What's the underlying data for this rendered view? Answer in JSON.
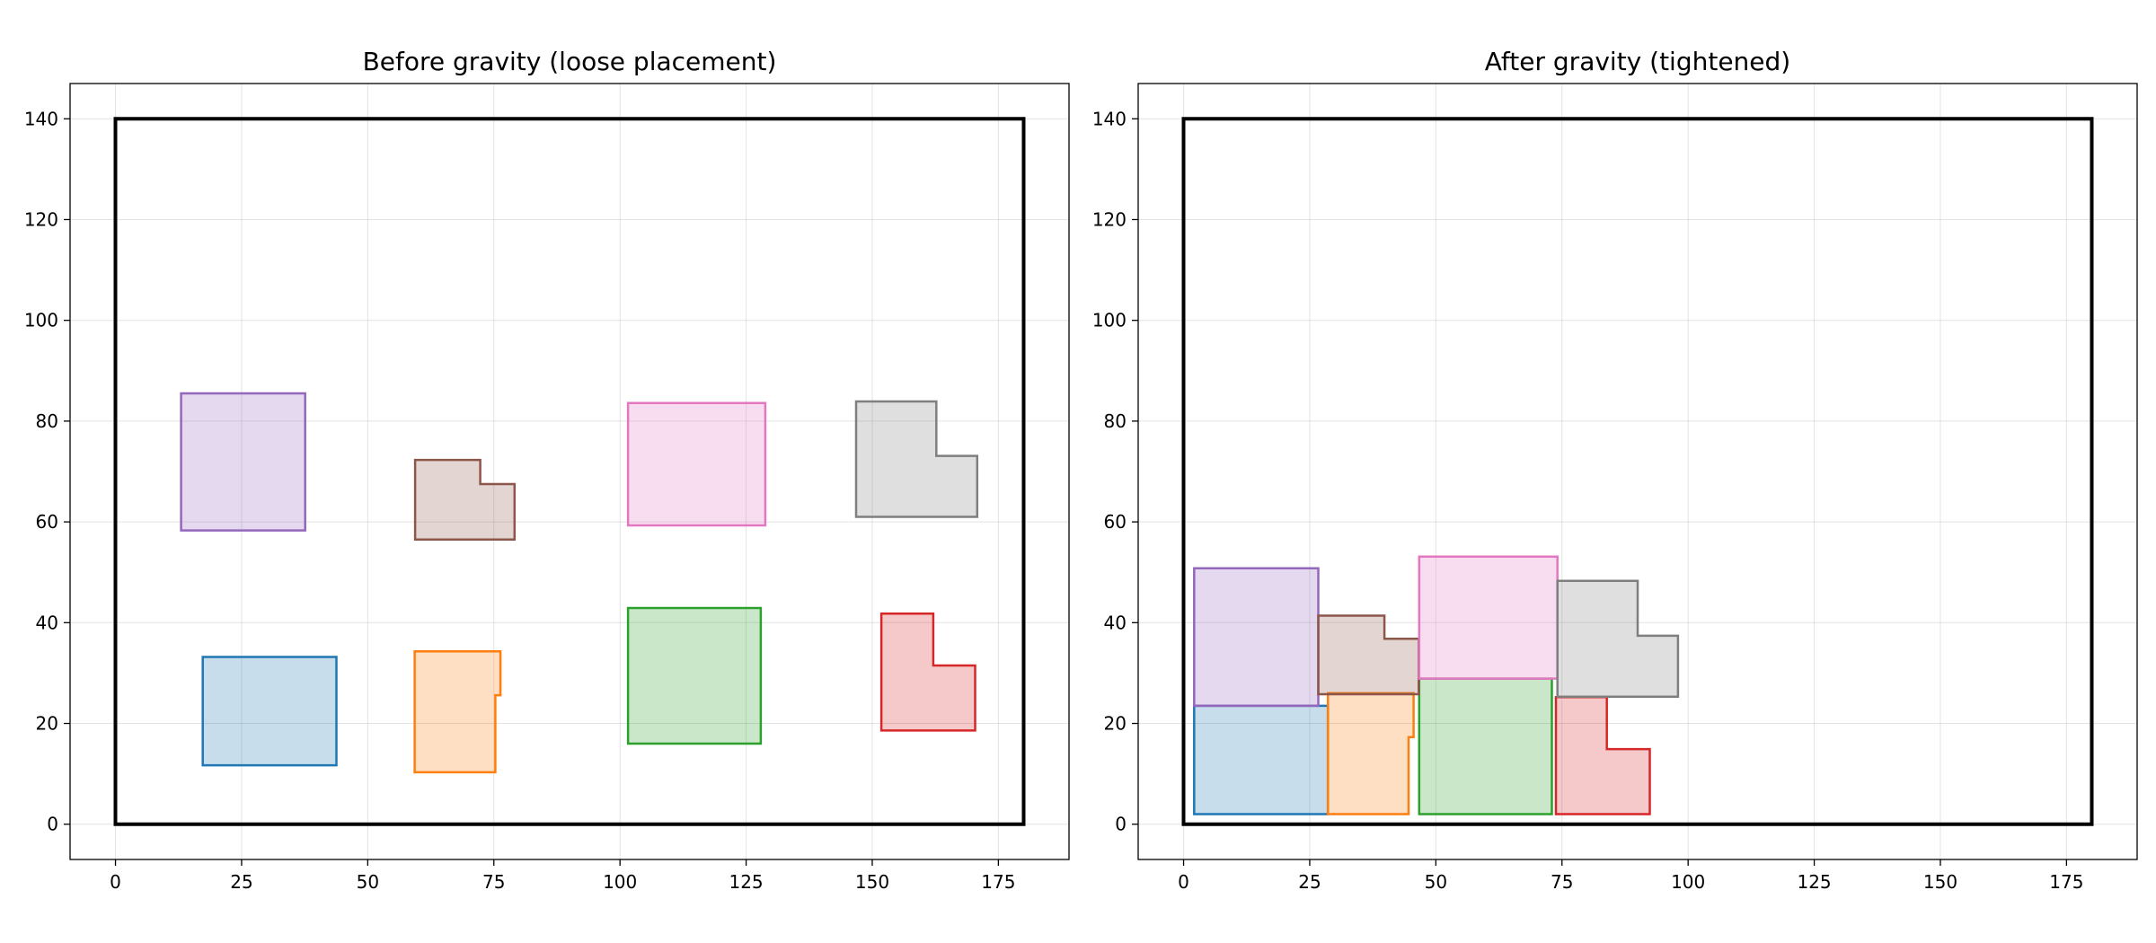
{
  "chart_data": [
    {
      "type": "polygon",
      "title": "Before gravity (loose placement)",
      "xlabel": "",
      "ylabel": "",
      "xlim": [
        -9,
        189
      ],
      "ylim": [
        -7,
        147
      ],
      "xticks": [
        0,
        25,
        50,
        75,
        100,
        125,
        150,
        175
      ],
      "yticks": [
        0,
        20,
        40,
        60,
        80,
        100,
        120,
        140
      ],
      "grid": true,
      "container": [
        [
          0,
          0
        ],
        [
          180,
          0
        ],
        [
          180,
          140
        ],
        [
          0,
          140
        ]
      ],
      "shapes": [
        {
          "color": "#1f77b4",
          "points": [
            [
              17.3,
              11.7
            ],
            [
              43.8,
              11.7
            ],
            [
              43.8,
              33.2
            ],
            [
              17.3,
              33.2
            ]
          ]
        },
        {
          "color": "#ff7f0e",
          "points": [
            [
              59.3,
              10.3
            ],
            [
              75.3,
              10.3
            ],
            [
              75.3,
              25.6
            ],
            [
              76.3,
              25.6
            ],
            [
              76.3,
              34.3
            ],
            [
              59.3,
              34.3
            ]
          ]
        },
        {
          "color": "#2ca02c",
          "points": [
            [
              101.6,
              16.0
            ],
            [
              127.9,
              16.0
            ],
            [
              127.9,
              42.9
            ],
            [
              101.6,
              42.9
            ]
          ]
        },
        {
          "color": "#d62728",
          "points": [
            [
              151.8,
              18.6
            ],
            [
              170.4,
              18.6
            ],
            [
              170.4,
              31.5
            ],
            [
              162.1,
              31.5
            ],
            [
              162.1,
              41.8
            ],
            [
              151.8,
              41.8
            ]
          ]
        },
        {
          "color": "#9467bd",
          "points": [
            [
              13.0,
              58.3
            ],
            [
              37.6,
              58.3
            ],
            [
              37.6,
              85.5
            ],
            [
              13.0,
              85.5
            ]
          ]
        },
        {
          "color": "#8c564b",
          "points": [
            [
              59.4,
              56.5
            ],
            [
              79.1,
              56.5
            ],
            [
              79.1,
              67.5
            ],
            [
              72.3,
              67.5
            ],
            [
              72.3,
              72.3
            ],
            [
              59.4,
              72.3
            ]
          ]
        },
        {
          "color": "#e377c2",
          "points": [
            [
              101.6,
              59.3
            ],
            [
              128.8,
              59.3
            ],
            [
              128.8,
              83.6
            ],
            [
              101.6,
              83.6
            ]
          ]
        },
        {
          "color": "#7f7f7f",
          "points": [
            [
              146.8,
              61.0
            ],
            [
              170.8,
              61.0
            ],
            [
              170.8,
              73.1
            ],
            [
              162.7,
              73.1
            ],
            [
              162.7,
              83.9
            ],
            [
              146.8,
              83.9
            ]
          ]
        }
      ]
    },
    {
      "type": "polygon",
      "title": "After gravity (tightened)",
      "xlabel": "",
      "ylabel": "",
      "xlim": [
        -9,
        189
      ],
      "ylim": [
        -7,
        147
      ],
      "xticks": [
        0,
        25,
        50,
        75,
        100,
        125,
        150,
        175
      ],
      "yticks": [
        0,
        20,
        40,
        60,
        80,
        100,
        120,
        140
      ],
      "grid": true,
      "container": [
        [
          0,
          0
        ],
        [
          180,
          0
        ],
        [
          180,
          140
        ],
        [
          0,
          140
        ]
      ],
      "shapes": [
        {
          "color": "#1f77b4",
          "points": [
            [
              2.1,
              2.0
            ],
            [
              28.6,
              2.0
            ],
            [
              28.6,
              23.5
            ],
            [
              2.1,
              23.5
            ]
          ]
        },
        {
          "color": "#ff7f0e",
          "points": [
            [
              28.6,
              2.0
            ],
            [
              44.6,
              2.0
            ],
            [
              44.6,
              17.3
            ],
            [
              45.6,
              17.3
            ],
            [
              45.6,
              26.0
            ],
            [
              28.6,
              26.0
            ]
          ]
        },
        {
          "color": "#2ca02c",
          "points": [
            [
              46.7,
              2.0
            ],
            [
              73.0,
              2.0
            ],
            [
              73.0,
              28.9
            ],
            [
              46.7,
              28.9
            ]
          ]
        },
        {
          "color": "#d62728",
          "points": [
            [
              73.8,
              2.0
            ],
            [
              92.4,
              2.0
            ],
            [
              92.4,
              14.9
            ],
            [
              83.9,
              14.9
            ],
            [
              83.9,
              25.2
            ],
            [
              73.8,
              25.2
            ]
          ]
        },
        {
          "color": "#9467bd",
          "points": [
            [
              2.1,
              23.5
            ],
            [
              26.7,
              23.5
            ],
            [
              26.7,
              50.8
            ],
            [
              2.1,
              50.8
            ]
          ]
        },
        {
          "color": "#8c564b",
          "points": [
            [
              26.7,
              25.8
            ],
            [
              46.6,
              25.8
            ],
            [
              46.6,
              36.8
            ],
            [
              39.8,
              36.8
            ],
            [
              39.8,
              41.4
            ],
            [
              26.7,
              41.4
            ]
          ]
        },
        {
          "color": "#e377c2",
          "points": [
            [
              46.7,
              28.9
            ],
            [
              74.1,
              28.9
            ],
            [
              74.1,
              53.1
            ],
            [
              46.7,
              53.1
            ]
          ]
        },
        {
          "color": "#7f7f7f",
          "points": [
            [
              74.1,
              25.3
            ],
            [
              98.0,
              25.3
            ],
            [
              98.0,
              37.4
            ],
            [
              90.0,
              37.4
            ],
            [
              90.0,
              48.3
            ],
            [
              74.1,
              48.3
            ]
          ]
        }
      ]
    }
  ]
}
